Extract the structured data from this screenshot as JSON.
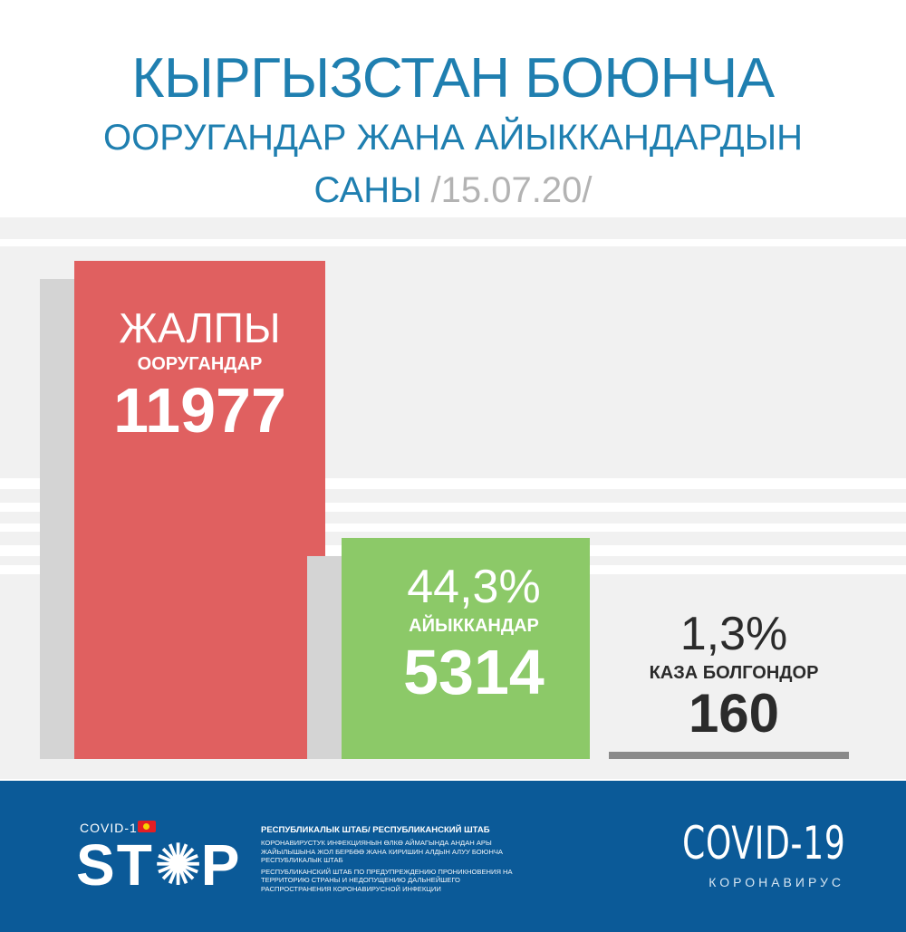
{
  "header": {
    "line1": "КЫРГЫЗСТАН БОЮНЧА",
    "line2": "ООРУГАНДАР ЖАНА АЙЫККАНДАРДЫН",
    "line3": "САНЫ",
    "date": "/15.07.20/"
  },
  "chart_data": {
    "type": "bar",
    "categories": [
      "ООРУГАНДАР",
      "АЙЫККАНДАР",
      "КАЗА БОЛГОНДОР"
    ],
    "values": [
      11977,
      5314,
      160
    ],
    "series": [
      {
        "values": [
          11977,
          5314,
          160
        ]
      }
    ],
    "ylim": [
      0,
      11977
    ],
    "grid": false,
    "bars": [
      {
        "top_word": "ЖАЛПЫ",
        "label": "ООРУГАНДАР",
        "value_text": "11977",
        "color": "#e06060"
      },
      {
        "top_word": "44,3%",
        "label": "АЙЫККАНДАР",
        "value_text": "5314",
        "color": "#8cc968"
      },
      {
        "top_word": "1,3%",
        "label": "КАЗА БОЛГОНДОР",
        "value_text": "160",
        "color": "#8a8a8a"
      }
    ]
  },
  "footer": {
    "covid_small": "COVID-19",
    "logo": {
      "s": "ST",
      "o": "✺",
      "p": "P"
    },
    "text_head": "РЕСПУБЛИКАЛЫК ШТАБ/ РЕСПУБЛИКАНСКИЙ ШТАБ",
    "text_kg": "КОРОНАВИРУСТУК ИНФЕКЦИЯНЫН ӨЛКӨ АЙМАГЫНДА АНДАН АРЫ ЖАЙЫЛЫШЫНА ЖОЛ БЕРБӨӨ ЖАНА КИРИШИН АЛДЫН АЛУУ БОЮНЧА РЕСПУБЛИКАЛЫК ШТАБ",
    "text_ru": "РЕСПУБЛИКАНСКИЙ ШТАБ ПО ПРЕДУПРЕЖДЕНИЮ ПРОНИКНОВЕНИЯ НА ТЕРРИТОРИЮ СТРАНЫ И НЕДОПУЩЕНИЮ ДАЛЬНЕЙШЕГО РАСПРОСТРАНЕНИЯ КОРОНАВИРУСНОЙ ИНФЕКЦИИ",
    "covid_big": "COVID-19",
    "covid_sub": "КОРОНАВИРУС"
  },
  "colors": {
    "title": "#1f7fb0",
    "date": "#b3b3b3",
    "footer_bg": "#0b5a98",
    "bar_total": "#e06060",
    "bar_recovered": "#8cc968",
    "bar_deaths": "#8a8a8a"
  }
}
